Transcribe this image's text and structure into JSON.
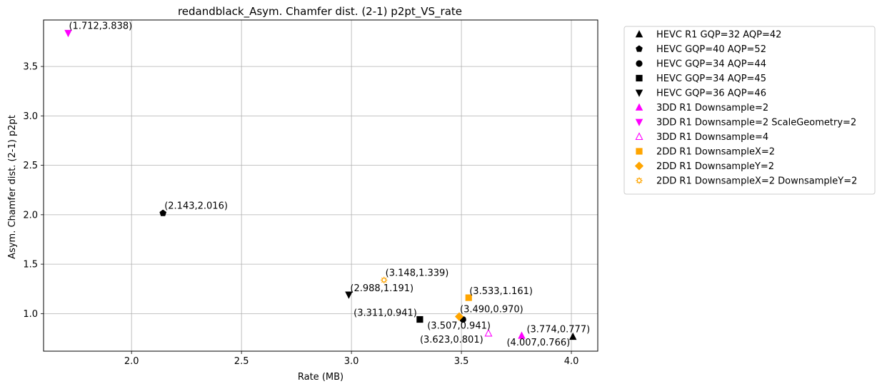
{
  "chart_data": {
    "type": "scatter",
    "title": "redandblack_Asym. Chamfer dist. (2-1) p2pt_VS_rate",
    "xlabel": "Rate (MB)",
    "ylabel": "Asym. Chamfer dist. (2-1) p2pt",
    "xlim": [
      1.6,
      4.12
    ],
    "ylim": [
      0.62,
      3.97
    ],
    "xticks": [
      2.0,
      2.5,
      3.0,
      3.5,
      4.0
    ],
    "xtick_labels": [
      "2.0",
      "2.5",
      "3.0",
      "3.5",
      "4.0"
    ],
    "yticks": [
      1.0,
      1.5,
      2.0,
      2.5,
      3.0,
      3.5
    ],
    "ytick_labels": [
      "1.0",
      "1.5",
      "2.0",
      "2.5",
      "3.0",
      "3.5"
    ],
    "grid": true,
    "legend_position": "outside-right-top",
    "series": [
      {
        "name": "HEVC R1 GQP=32 AQP=42",
        "marker": "triangle-up",
        "color": "#000000",
        "filled": true,
        "points": [
          {
            "x": 4.007,
            "y": 0.766,
            "label": "(4.007,0.766)"
          }
        ]
      },
      {
        "name": "HEVC GQP=40 AQP=52",
        "marker": "pentagon",
        "color": "#000000",
        "filled": true,
        "points": [
          {
            "x": 2.143,
            "y": 2.016,
            "label": "(2.143,2.016)"
          }
        ]
      },
      {
        "name": "HEVC GQP=34 AQP=44",
        "marker": "circle",
        "color": "#000000",
        "filled": true,
        "points": [
          {
            "x": 3.507,
            "y": 0.941,
            "label": "(3.507,0.941)"
          }
        ]
      },
      {
        "name": "HEVC GQP=34 AQP=45",
        "marker": "square",
        "color": "#000000",
        "filled": true,
        "points": [
          {
            "x": 3.311,
            "y": 0.941,
            "label": "(3.311,0.941)"
          }
        ]
      },
      {
        "name": "HEVC GQP=36 AQP=46",
        "marker": "triangle-down",
        "color": "#000000",
        "filled": true,
        "points": [
          {
            "x": 2.988,
            "y": 1.191,
            "label": "(2.988,1.191)"
          }
        ]
      },
      {
        "name": "3DD R1 Downsample=2",
        "marker": "triangle-up",
        "color": "#ff00ff",
        "filled": true,
        "points": [
          {
            "x": 3.774,
            "y": 0.777,
            "label": "(3.774,0.777)"
          }
        ]
      },
      {
        "name": "3DD R1 Downsample=2 ScaleGeometry=2",
        "marker": "triangle-down",
        "color": "#ff00ff",
        "filled": true,
        "points": [
          {
            "x": 1.712,
            "y": 3.838,
            "label": "(1.712,3.838)"
          }
        ]
      },
      {
        "name": "3DD R1 Downsample=4",
        "marker": "triangle-up",
        "color": "#ff00ff",
        "filled": false,
        "points": [
          {
            "x": 3.623,
            "y": 0.801,
            "label": "(3.623,0.801)"
          }
        ]
      },
      {
        "name": "2DD R1 DownsampleX=2",
        "marker": "square",
        "color": "#ffa500",
        "filled": true,
        "points": [
          {
            "x": 3.533,
            "y": 1.161,
            "label": "(3.533,1.161)"
          }
        ]
      },
      {
        "name": "2DD R1 DownsampleY=2",
        "marker": "diamond",
        "color": "#ffa500",
        "filled": true,
        "points": [
          {
            "x": 3.49,
            "y": 0.97,
            "label": "(3.490,0.970)"
          }
        ]
      },
      {
        "name": "2DD R1 DownsampleX=2 DownsampleY=2",
        "marker": "gear",
        "color": "#ffa500",
        "filled": false,
        "points": [
          {
            "x": 3.148,
            "y": 1.339,
            "label": "(3.148,1.339)"
          }
        ]
      }
    ]
  }
}
